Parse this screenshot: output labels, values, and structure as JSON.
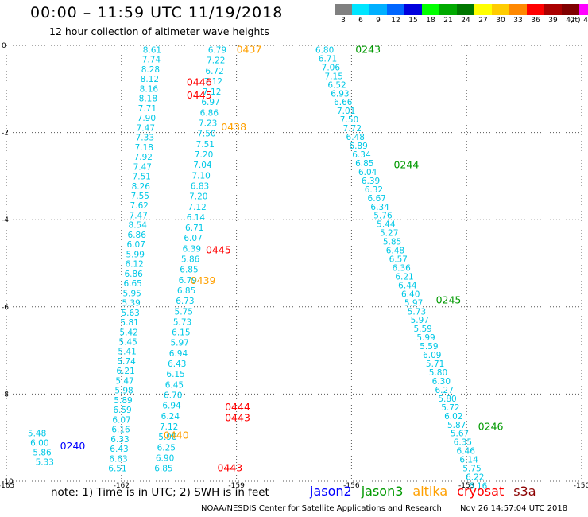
{
  "header": {
    "title": "00:00 – 11:59 UTC 11/19/2018",
    "subtitle": "12 hour collection of altimeter wave heights"
  },
  "colorbar": {
    "labels": [
      "3",
      "6",
      "9",
      "12",
      "15",
      "18",
      "21",
      "24",
      "27",
      "30",
      "33",
      "36",
      "39",
      "42",
      "45",
      "70"
    ],
    "colors": [
      "#808080",
      "#00e5ff",
      "#00b0ff",
      "#0066ff",
      "#0000dd",
      "#00ff00",
      "#00aa00",
      "#007700",
      "#ffff00",
      "#ffcc00",
      "#ff8800",
      "#ff0000",
      "#aa0000",
      "#800000",
      "#ff00ff",
      "#000000"
    ],
    "unit": "(ft)"
  },
  "chart_data": {
    "type": "map",
    "x_ticks": [
      "-165",
      "-162",
      "-159",
      "-156",
      "-153",
      "-150"
    ],
    "y_ticks": [
      "0",
      "-2",
      "-4",
      "-6",
      "-8",
      "-10"
    ],
    "xlim": [
      -165,
      -150
    ],
    "ylim": [
      -10,
      0
    ],
    "grid": true,
    "colors": {
      "cyan": "#00c8e6",
      "red": "#ff0000",
      "orange": "#ffa000",
      "green": "#009900",
      "blue": "#0000ff"
    },
    "tracks": [
      {
        "lon": -161.2,
        "lat_start": -0.1,
        "lat_end": -9.7,
        "values": [
          "8.61",
          "7.74",
          "8.28",
          "8.12",
          "8.16",
          "8.18",
          "7.71",
          "7.90",
          "7.47",
          "7.33",
          "7.18",
          "7.92",
          "7.47",
          "7.51",
          "8.26",
          "7.55",
          "7.62",
          "7.47",
          "8.54",
          "6.86",
          "6.07",
          "5.99",
          "6.12",
          "6.86",
          "6.65",
          "5.95",
          "5.39",
          "5.63",
          "5.81",
          "5.42",
          "5.45",
          "5.41",
          "5.74",
          "6.21",
          "5.47",
          "5.98",
          "5.89",
          "6.59",
          "6.07",
          "6.16",
          "6.33",
          "6.43",
          "6.63",
          "6.51"
        ],
        "lon_end": -162.1
      },
      {
        "lon": -159.5,
        "lat_start": -0.1,
        "lat_end": -9.7,
        "values": [
          "6.79",
          "7.22",
          "6.72",
          "7.12",
          "7.12",
          "6.97",
          "6.86",
          "7.23",
          "7.50",
          "7.51",
          "7.20",
          "7.04",
          "7.10",
          "6.83",
          "7.20",
          "7.12",
          "6.14",
          "6.71",
          "6.07",
          "6.39",
          "5.86",
          "6.85",
          "6.79",
          "6.85",
          "6.73",
          "5.75",
          "5.73",
          "6.15",
          "5.97",
          "6.94",
          "6.43",
          "6.15",
          "6.45",
          "6.70",
          "6.94",
          "6.24",
          "7.12",
          "5.98",
          "6.25",
          "6.90",
          "6.85"
        ],
        "lon_end": -160.9
      },
      {
        "lon": -156.7,
        "lat_start": -0.1,
        "lat_end": -10.1,
        "values": [
          "6.80",
          "6.71",
          "7.06",
          "7.15",
          "6.52",
          "6.93",
          "6.66",
          "7.01",
          "7.50",
          "7.72",
          "6.48",
          "6.89",
          "6.34",
          "6.85",
          "6.04",
          "6.39",
          "6.32",
          "6.67",
          "6.34",
          "5.76",
          "5.44",
          "5.27",
          "5.85",
          "6.48",
          "6.57",
          "6.36",
          "6.21",
          "6.44",
          "6.40",
          "5.97",
          "5.73",
          "5.97",
          "5.59",
          "5.99",
          "5.59",
          "6.09",
          "5.71",
          "5.80",
          "6.30",
          "6.27",
          "5.80",
          "5.72",
          "6.02",
          "5.87",
          "5.67",
          "6.35",
          "6.46",
          "6.14",
          "5.75",
          "6.22",
          "6.16"
        ],
        "lon_end": -152.7
      },
      {
        "lon": -164.2,
        "lat_start": -8.9,
        "lat_end": -9.55,
        "values": [
          "5.48",
          "6.00",
          "5.86",
          "5.33"
        ],
        "lon_end": -164.0
      }
    ],
    "pass_labels": [
      {
        "text": "0437",
        "lon": -159.0,
        "lat": -0.1,
        "color": "orange"
      },
      {
        "text": "0446",
        "lon": -160.3,
        "lat": -0.85,
        "color": "red"
      },
      {
        "text": "0445",
        "lon": -160.3,
        "lat": -1.15,
        "color": "red"
      },
      {
        "text": "0438",
        "lon": -159.4,
        "lat": -1.88,
        "color": "orange"
      },
      {
        "text": "0445",
        "lon": -159.8,
        "lat": -4.7,
        "color": "red"
      },
      {
        "text": "0439",
        "lon": -160.2,
        "lat": -5.4,
        "color": "orange"
      },
      {
        "text": "0444",
        "lon": -159.3,
        "lat": -8.3,
        "color": "red"
      },
      {
        "text": "0443",
        "lon": -159.3,
        "lat": -8.55,
        "color": "red"
      },
      {
        "text": "0440",
        "lon": -160.9,
        "lat": -8.95,
        "color": "orange"
      },
      {
        "text": "0443",
        "lon": -159.5,
        "lat": -9.7,
        "color": "red"
      },
      {
        "text": "0240",
        "lon": -163.6,
        "lat": -9.2,
        "color": "blue"
      },
      {
        "text": "0243",
        "lon": -155.9,
        "lat": -0.1,
        "color": "green"
      },
      {
        "text": "0244",
        "lon": -154.9,
        "lat": -2.75,
        "color": "green"
      },
      {
        "text": "0245",
        "lon": -153.8,
        "lat": -5.85,
        "color": "green"
      },
      {
        "text": "0246",
        "lon": -152.7,
        "lat": -8.75,
        "color": "green"
      }
    ]
  },
  "note": "note:  1) Time is in UTC;  2) SWH is in feet",
  "legend": [
    {
      "label": "jason2",
      "color": "#0000ff"
    },
    {
      "label": "jason3",
      "color": "#009900"
    },
    {
      "label": "altika",
      "color": "#ffa000"
    },
    {
      "label": "cryosat",
      "color": "#ff0000"
    },
    {
      "label": "s3a",
      "color": "#8b0000"
    }
  ],
  "footer": {
    "source": "NOAA/NESDIS Center for Satellite Applications and Research",
    "date": "Nov 26 14:57:04 UTC 2018"
  }
}
